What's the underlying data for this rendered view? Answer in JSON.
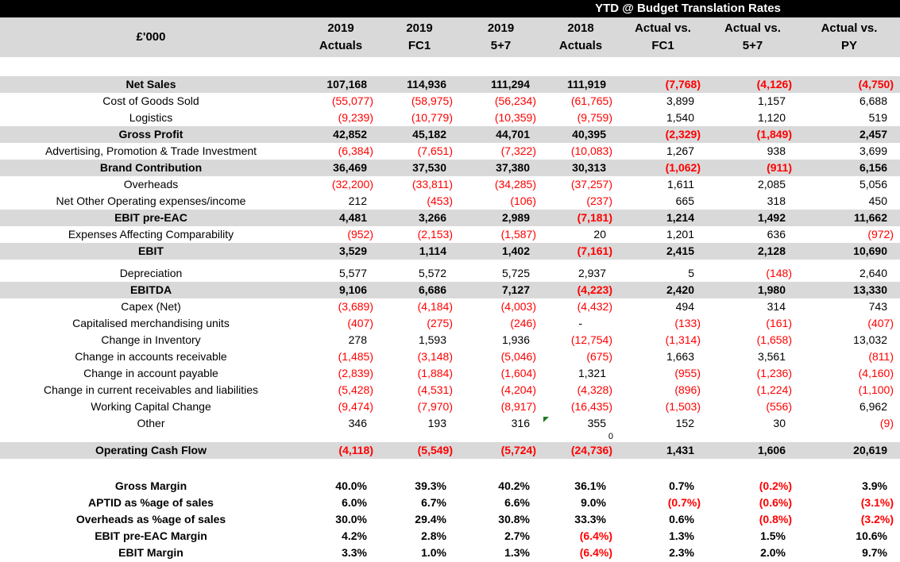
{
  "title_bar": {
    "label": "YTD @ Budget Translation Rates",
    "bg": "#000000",
    "fg": "#FFFFFF"
  },
  "colors": {
    "band_bg": "#D9D9D9",
    "header_bg": "#D9D9D9",
    "negative_text": "#FF0000",
    "positive_text": "#000000",
    "comment_marker_green": "#1E7A1E"
  },
  "header": {
    "unit_label": "£'000",
    "columns": [
      {
        "id": "2019-actuals",
        "line1": "2019",
        "line2": "Actuals"
      },
      {
        "id": "2019-fc1",
        "line1": "2019",
        "line2": "FC1"
      },
      {
        "id": "2019-5plus7",
        "line1": "2019",
        "line2": "5+7"
      },
      {
        "id": "2018-actuals",
        "line1": "2018",
        "line2": "Actuals"
      },
      {
        "id": "actual-vs-fc1",
        "line1": "Actual vs.",
        "line2": "FC1"
      },
      {
        "id": "actual-vs-5plus7",
        "line1": "Actual vs.",
        "line2": "5+7"
      },
      {
        "id": "actual-vs-py",
        "line1": "Actual vs.",
        "line2": "PY"
      }
    ]
  },
  "rows": [
    {
      "label": "Net Sales",
      "emphasis": "band",
      "values": [
        "107,168",
        "114,936",
        "111,294",
        "111,919",
        "(7,768)",
        "(4,126)",
        "(4,750)"
      ]
    },
    {
      "label": "Cost of Goods Sold",
      "emphasis": "none",
      "values": [
        "(55,077)",
        "(58,975)",
        "(56,234)",
        "(61,765)",
        "3,899",
        "1,157",
        "6,688"
      ]
    },
    {
      "label": "Logistics",
      "emphasis": "none",
      "values": [
        "(9,239)",
        "(10,779)",
        "(10,359)",
        "(9,759)",
        "1,540",
        "1,120",
        "519"
      ]
    },
    {
      "label": "Gross Profit",
      "emphasis": "band",
      "values": [
        "42,852",
        "45,182",
        "44,701",
        "40,395",
        "(2,329)",
        "(1,849)",
        "2,457"
      ]
    },
    {
      "label": "Advertising, Promotion & Trade Investment",
      "emphasis": "none",
      "values": [
        "(6,384)",
        "(7,651)",
        "(7,322)",
        "(10,083)",
        "1,267",
        "938",
        "3,699"
      ]
    },
    {
      "label": "Brand Contribution",
      "emphasis": "band",
      "values": [
        "36,469",
        "37,530",
        "37,380",
        "30,313",
        "(1,062)",
        "(911)",
        "6,156"
      ]
    },
    {
      "label": "Overheads",
      "emphasis": "none",
      "values": [
        "(32,200)",
        "(33,811)",
        "(34,285)",
        "(37,257)",
        "1,611",
        "2,085",
        "5,056"
      ]
    },
    {
      "label": "Net Other Operating expenses/income",
      "emphasis": "none",
      "values": [
        "212",
        "(453)",
        "(106)",
        "(237)",
        "665",
        "318",
        "450"
      ]
    },
    {
      "label": "EBIT pre-EAC",
      "emphasis": "band",
      "values": [
        "4,481",
        "3,266",
        "2,989",
        "(7,181)",
        "1,214",
        "1,492",
        "11,662"
      ]
    },
    {
      "label": "Expenses Affecting Comparability",
      "emphasis": "none",
      "values": [
        "(952)",
        "(2,153)",
        "(1,587)",
        "20",
        "1,201",
        "636",
        "(972)"
      ]
    },
    {
      "label": "EBIT",
      "emphasis": "band",
      "values": [
        "3,529",
        "1,114",
        "1,402",
        "(7,161)",
        "2,415",
        "2,128",
        "10,690"
      ]
    },
    {
      "label": "Depreciation",
      "emphasis": "none",
      "gap_before": 7,
      "values": [
        "5,577",
        "5,572",
        "5,725",
        "2,937",
        "5",
        "(148)",
        "2,640"
      ]
    },
    {
      "label": "EBITDA",
      "emphasis": "band",
      "values": [
        "9,106",
        "6,686",
        "7,127",
        "(4,223)",
        "2,420",
        "1,980",
        "13,330"
      ]
    },
    {
      "label": "Capex (Net)",
      "emphasis": "none",
      "values": [
        "(3,689)",
        "(4,184)",
        "(4,003)",
        "(4,432)",
        "494",
        "314",
        "743"
      ]
    },
    {
      "label": "Capitalised merchandising units",
      "emphasis": "none",
      "values": [
        "(407)",
        "(275)",
        "(246)",
        "-",
        "(133)",
        "(161)",
        "(407)"
      ]
    },
    {
      "label": "Change in Inventory",
      "emphasis": "none",
      "values": [
        "278",
        "1,593",
        "1,936",
        "(12,754)",
        "(1,314)",
        "(1,658)",
        "13,032"
      ]
    },
    {
      "label": "Change in accounts receivable",
      "emphasis": "none",
      "values": [
        "(1,485)",
        "(3,148)",
        "(5,046)",
        "(675)",
        "1,663",
        "3,561",
        "(811)"
      ]
    },
    {
      "label": "Change in account payable",
      "emphasis": "none",
      "values": [
        "(2,839)",
        "(1,884)",
        "(1,604)",
        "1,321",
        "(955)",
        "(1,236)",
        "(4,160)"
      ]
    },
    {
      "label": "Change in current receivables and liabilities",
      "emphasis": "none",
      "values": [
        "(5,428)",
        "(4,531)",
        "(4,204)",
        "(4,328)",
        "(896)",
        "(1,224)",
        "(1,100)"
      ]
    },
    {
      "label": "Working Capital Change",
      "emphasis": "none",
      "values": [
        "(9,474)",
        "(7,970)",
        "(8,917)",
        "(16,435)",
        "(1,503)",
        "(556)",
        "6,962"
      ]
    },
    {
      "label": "Other",
      "emphasis": "none",
      "marker_col": 3,
      "values": [
        "346",
        "193",
        "316",
        "355",
        "152",
        "30",
        "(9)"
      ]
    },
    {
      "type": "stray-zero",
      "text": "0"
    },
    {
      "label": "Operating Cash Flow",
      "emphasis": "band",
      "values": [
        "(4,118)",
        "(5,549)",
        "(5,724)",
        "(24,736)",
        "1,431",
        "1,606",
        "20,619"
      ]
    },
    {
      "label": "Gross Margin",
      "emphasis": "margin",
      "gap_before": 24,
      "values": [
        "40.0%",
        "39.3%",
        "40.2%",
        "36.1%",
        "0.7%",
        "(0.2%)",
        "3.9%"
      ]
    },
    {
      "label": "APTID as %age of sales",
      "emphasis": "margin",
      "values": [
        "6.0%",
        "6.7%",
        "6.6%",
        "9.0%",
        "(0.7%)",
        "(0.6%)",
        "(3.1%)"
      ]
    },
    {
      "label": "Overheads as %age of sales",
      "emphasis": "margin",
      "values": [
        "30.0%",
        "29.4%",
        "30.8%",
        "33.3%",
        "0.6%",
        "(0.8%)",
        "(3.2%)"
      ]
    },
    {
      "label": "EBIT pre-EAC Margin",
      "emphasis": "margin",
      "values": [
        "4.2%",
        "2.8%",
        "2.7%",
        "(6.4%)",
        "1.3%",
        "1.5%",
        "10.6%"
      ]
    },
    {
      "label": "EBIT Margin",
      "emphasis": "margin",
      "values": [
        "3.3%",
        "1.0%",
        "1.3%",
        "(6.4%)",
        "2.3%",
        "2.0%",
        "9.7%"
      ]
    }
  ]
}
